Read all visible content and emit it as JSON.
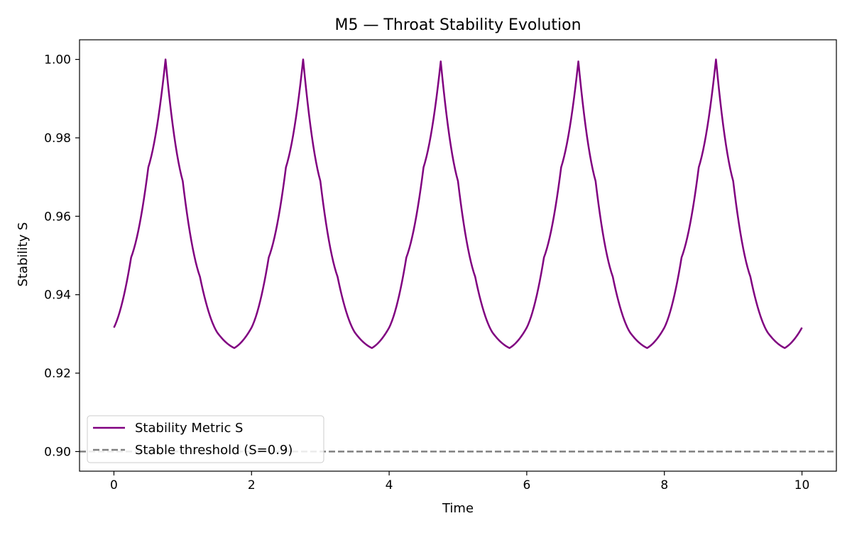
{
  "chart_data": {
    "type": "line",
    "title": "M5 — Throat Stability Evolution",
    "xlabel": "Time",
    "ylabel": "Stability S",
    "xlim": [
      -0.5,
      10.5
    ],
    "ylim": [
      0.895,
      1.005
    ],
    "xticks": [
      0,
      2,
      4,
      6,
      8,
      10
    ],
    "yticks": [
      0.9,
      0.92,
      0.94,
      0.96,
      0.98,
      1.0
    ],
    "xtick_labels": [
      "0",
      "2",
      "4",
      "6",
      "8",
      "10"
    ],
    "ytick_labels": [
      "0.90",
      "0.92",
      "0.94",
      "0.96",
      "0.98",
      "1.00"
    ],
    "grid": false,
    "legend_position": "lower-left",
    "series": [
      {
        "name": "Stability Metric S",
        "color": "#800080",
        "style": "solid",
        "x": [
          0.0,
          0.25,
          0.5,
          0.75,
          1.0,
          1.25,
          1.5,
          1.75,
          2.0,
          2.25,
          2.5,
          2.75,
          3.0,
          3.25,
          3.5,
          3.75,
          4.0,
          4.25,
          4.5,
          4.75,
          5.0,
          5.25,
          5.5,
          5.75,
          6.0,
          6.25,
          6.5,
          6.75,
          7.0,
          7.25,
          7.5,
          7.75,
          8.0,
          8.25,
          8.5,
          8.75,
          9.0,
          9.25,
          9.5,
          9.75,
          10.0
        ],
        "y": [
          0.9316,
          0.9495,
          0.9725,
          1.0,
          0.969,
          0.9446,
          0.9304,
          0.9264,
          0.9316,
          0.9495,
          0.9725,
          1.0,
          0.969,
          0.9446,
          0.9304,
          0.9264,
          0.9316,
          0.9495,
          0.9725,
          0.9995,
          0.969,
          0.9446,
          0.9304,
          0.9264,
          0.9316,
          0.9495,
          0.9725,
          0.9995,
          0.969,
          0.9446,
          0.9304,
          0.9264,
          0.9316,
          0.9495,
          0.9725,
          1.0,
          0.969,
          0.9446,
          0.9304,
          0.9264,
          0.9316
        ]
      },
      {
        "name": "Stable threshold (S=0.9)",
        "color": "#808080",
        "style": "dashed",
        "hline": 0.9
      }
    ]
  }
}
